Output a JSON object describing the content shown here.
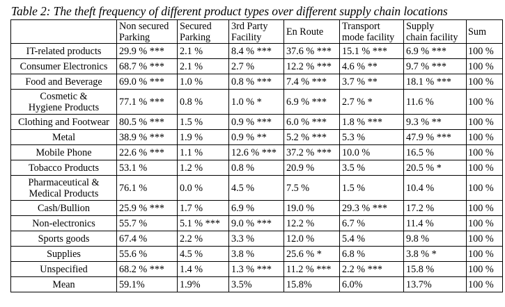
{
  "title": "Table 2: The theft frequency of different product types over different supply chain locations",
  "headers": [
    "",
    "Non secured Parking",
    "Secured Parking",
    "3rd Party Facility",
    "En Route",
    "Transport mode facility",
    "Supply chain facility",
    "Sum"
  ],
  "header_lines": [
    [
      ""
    ],
    [
      "Non secured",
      "Parking"
    ],
    [
      "Secured",
      "Parking"
    ],
    [
      "3rd Party",
      "Facility"
    ],
    [
      "En Route"
    ],
    [
      "Transport",
      "mode facility"
    ],
    [
      "Supply",
      "chain facility"
    ],
    [
      "Sum"
    ]
  ],
  "rows": [
    {
      "label": [
        "IT-related products"
      ],
      "cells": [
        "29.9 % ***",
        "2.1 %",
        "8.4 % ***",
        "37.6 % ***",
        "15.1 % ***",
        "6.9 % ***",
        "100 %"
      ]
    },
    {
      "label": [
        "Consumer Electronics"
      ],
      "cells": [
        "68.7 % ***",
        "2.1 %",
        "2.7 %",
        "12.2 % ***",
        "4.6 % **",
        "9.7 % ***",
        "100 %"
      ]
    },
    {
      "label": [
        "Food and Beverage"
      ],
      "cells": [
        "69.0 % ***",
        "1.0 %",
        "0.8 % ***",
        "7.4 % ***",
        "3.7 % **",
        "18.1 % ***",
        "100 %"
      ]
    },
    {
      "label": [
        "Cosmetic &",
        "Hygiene Products"
      ],
      "cells": [
        "77.1 % ***",
        "0.8 %",
        "1.0 % *",
        "6.9 % ***",
        "2.7 % *",
        "11.6 %",
        "100 %"
      ]
    },
    {
      "label": [
        "Clothing and Footwear"
      ],
      "cells": [
        "80.5 % ***",
        "1.5 %",
        "0.9 % ***",
        "6.0 % ***",
        "1.8 % ***",
        "9.3 % **",
        "100 %"
      ]
    },
    {
      "label": [
        "Metal"
      ],
      "cells": [
        "38.9 % ***",
        "1.9 %",
        "0.9 % **",
        "5.2 % ***",
        "5.3 %",
        "47.9 % ***",
        "100 %"
      ]
    },
    {
      "label": [
        "Mobile Phone"
      ],
      "cells": [
        "22.6 % ***",
        "1.1 %",
        "12.6 % ***",
        "37.2 % ***",
        "10.0 %",
        "16.5 %",
        "100 %"
      ]
    },
    {
      "label": [
        "Tobacco Products"
      ],
      "cells": [
        "53.1 %",
        "1.2 %",
        "0.8 %",
        "20.9 %",
        "3.5 %",
        "20.5 % *",
        "100 %"
      ]
    },
    {
      "label": [
        "Pharmaceutical &",
        "Medical Products"
      ],
      "cells": [
        "76.1 %",
        "0.0 %",
        "4.5 %",
        "7.5 %",
        "1.5 %",
        "10.4 %",
        "100 %"
      ]
    },
    {
      "label": [
        "Cash/Bullion"
      ],
      "cells": [
        "25.9 % ***",
        "1.7 %",
        "6.9 %",
        "19.0 %",
        "29.3 % ***",
        "17.2 %",
        "100 %"
      ]
    },
    {
      "label": [
        "Non-electronics"
      ],
      "cells": [
        "55.7 %",
        "5.1 % ***",
        "9.0 % ***",
        "12.2 %",
        "6.7 %",
        "11.4 %",
        "100 %"
      ]
    },
    {
      "label": [
        "Sports goods"
      ],
      "cells": [
        "67.4 %",
        "2.2 %",
        "3.3 %",
        "12.0 %",
        "5.4 %",
        "9.8 %",
        "100 %"
      ]
    },
    {
      "label": [
        "Supplies"
      ],
      "cells": [
        "55.6 %",
        "4.5 %",
        "3.8 %",
        "25.6 % *",
        "6.8 %",
        "3.8 % *",
        "100 %"
      ]
    },
    {
      "label": [
        "Unspecified"
      ],
      "cells": [
        "68.2 % ***",
        "1.4 %",
        "1.3 % ***",
        "11.2 % ***",
        "2.2 % ***",
        "15.8 %",
        "100 %"
      ]
    },
    {
      "label": [
        "Mean"
      ],
      "cells": [
        "59.1%",
        "1.9%",
        "3.5%",
        "15.8%",
        "6.0%",
        "13.7%",
        "100 %"
      ]
    }
  ]
}
